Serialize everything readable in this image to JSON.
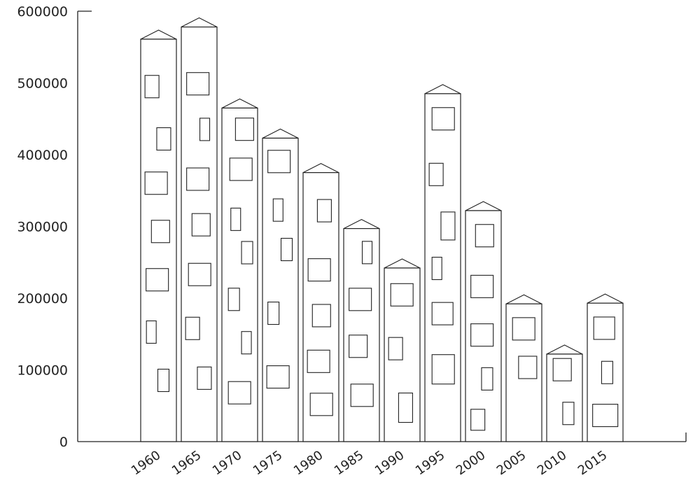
{
  "chart_data": {
    "type": "bar",
    "title": "",
    "xlabel": "",
    "ylabel": "",
    "categories": [
      "1960",
      "1965",
      "1970",
      "1975",
      "1980",
      "1985",
      "1990",
      "1995",
      "2000",
      "2005",
      "2010",
      "2015"
    ],
    "values": [
      561000,
      578000,
      465000,
      423000,
      375000,
      297000,
      242000,
      485000,
      322000,
      192000,
      122000,
      193000
    ],
    "ylim": [
      0,
      600000
    ],
    "yticks": [
      "0",
      "100000",
      "200000",
      "300000",
      "400000",
      "500000",
      "600000"
    ],
    "grid": false,
    "legend": "none",
    "style": "building-shaped bars with roofs and windows",
    "colors": {
      "stroke": "#222222",
      "fill": "#ffffff"
    }
  }
}
